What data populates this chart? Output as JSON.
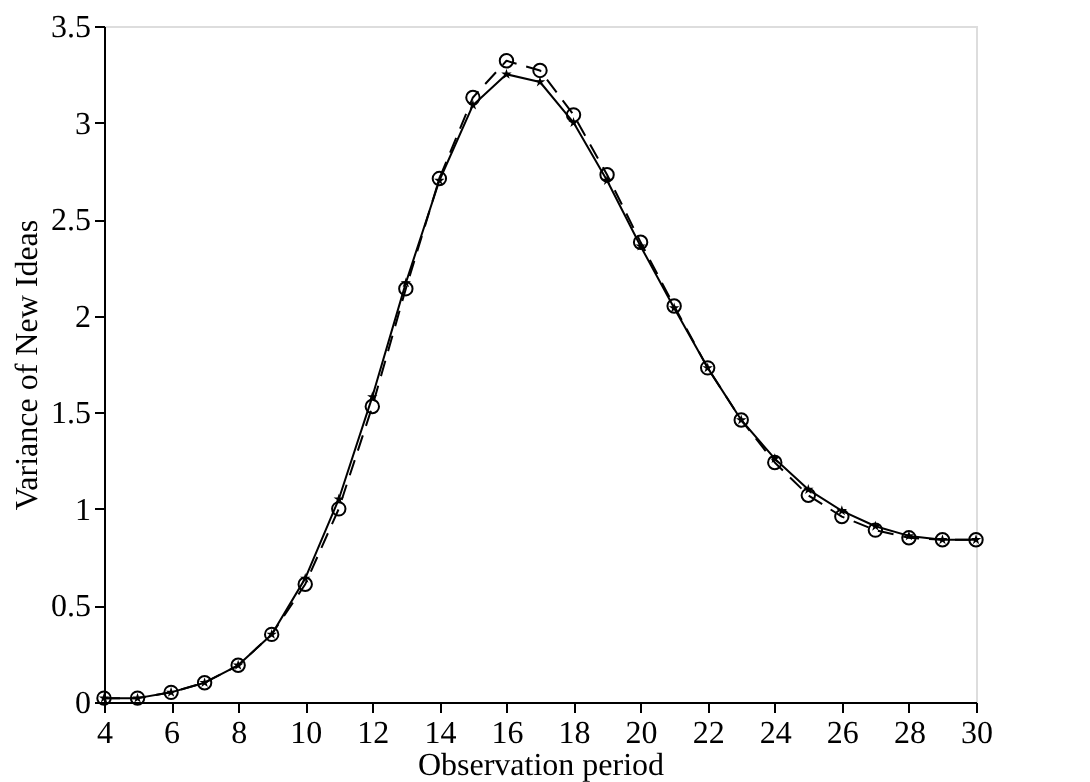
{
  "chart_data": {
    "type": "line",
    "xlabel": "Observation period",
    "ylabel": "Variance of New Ideas",
    "x": [
      4,
      5,
      6,
      7,
      8,
      9,
      10,
      11,
      12,
      13,
      14,
      15,
      16,
      17,
      18,
      19,
      20,
      21,
      22,
      23,
      24,
      25,
      26,
      27,
      28,
      29,
      30
    ],
    "series": [
      {
        "color": "#000000",
        "marker": "star",
        "line_style": "solid",
        "values": [
          0.02,
          0.02,
          0.05,
          0.1,
          0.19,
          0.35,
          0.64,
          1.05,
          1.58,
          2.17,
          2.7,
          3.09,
          3.25,
          3.21,
          3.0,
          2.7,
          2.36,
          2.04,
          1.73,
          1.46,
          1.26,
          1.1,
          0.99,
          0.91,
          0.86,
          0.84,
          0.84
        ]
      },
      {
        "color": "#000000",
        "marker": "circle",
        "line_style": "dashed",
        "values": [
          0.02,
          0.02,
          0.05,
          0.1,
          0.19,
          0.35,
          0.61,
          1.0,
          1.53,
          2.14,
          2.71,
          3.13,
          3.32,
          3.27,
          3.04,
          2.73,
          2.38,
          2.05,
          1.73,
          1.46,
          1.24,
          1.07,
          0.96,
          0.89,
          0.85,
          0.84,
          0.84
        ]
      }
    ],
    "xlim": [
      4,
      30
    ],
    "xticks": [
      4,
      6,
      8,
      10,
      12,
      14,
      16,
      18,
      20,
      22,
      24,
      26,
      28,
      30
    ],
    "ylim": [
      0,
      3.5
    ],
    "yticks": [
      0,
      0.5,
      1,
      1.5,
      2,
      2.5,
      3,
      3.5
    ],
    "grid": false,
    "legend": false
  }
}
